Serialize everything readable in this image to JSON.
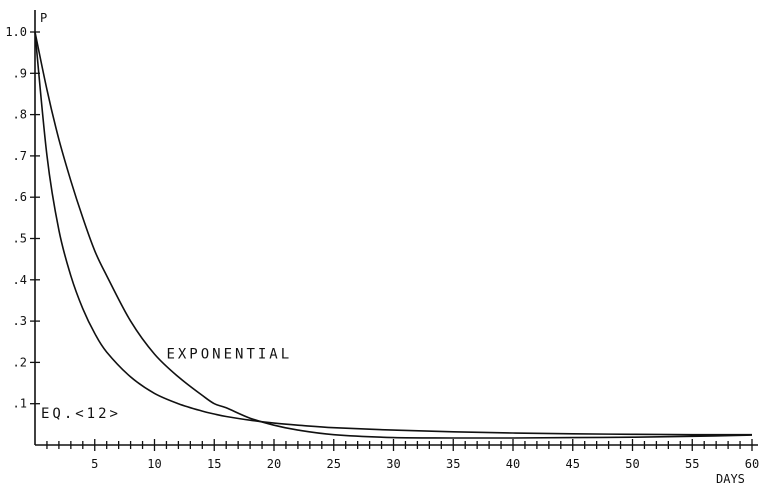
{
  "chart_data": {
    "type": "line",
    "xlabel": "DAYS",
    "ylabel": "P",
    "xlim": [
      0,
      60
    ],
    "ylim": [
      0,
      1.0
    ],
    "x_ticks": [
      "5",
      "10",
      "15",
      "20",
      "25",
      "30",
      "35",
      "40",
      "45",
      "50",
      "55",
      "60"
    ],
    "y_ticks": [
      ".1",
      ".2",
      ".3",
      ".4",
      ".5",
      ".6",
      ".7",
      ".8",
      ".9",
      "1.0"
    ],
    "grid": false,
    "series": [
      {
        "name": "EXPONENTIAL",
        "x": [
          0,
          1,
          2,
          3,
          4,
          5,
          6,
          8,
          10,
          12,
          14,
          15,
          16,
          18,
          20,
          22,
          25,
          30,
          35,
          40,
          45,
          50,
          55,
          60
        ],
        "y": [
          1.0,
          0.86,
          0.74,
          0.64,
          0.55,
          0.47,
          0.41,
          0.3,
          0.22,
          0.165,
          0.12,
          0.1,
          0.09,
          0.065,
          0.048,
          0.036,
          0.025,
          0.018,
          0.017,
          0.017,
          0.018,
          0.019,
          0.021,
          0.024
        ]
      },
      {
        "name": "EQ.<12>",
        "x": [
          0,
          1,
          2,
          3,
          4,
          5,
          6,
          8,
          10,
          12,
          14,
          15,
          16,
          18,
          20,
          22,
          25,
          30,
          35,
          40,
          45,
          50,
          55,
          60
        ],
        "y": [
          1.0,
          0.7,
          0.52,
          0.41,
          0.33,
          0.27,
          0.225,
          0.165,
          0.125,
          0.1,
          0.082,
          0.075,
          0.069,
          0.06,
          0.053,
          0.048,
          0.042,
          0.036,
          0.032,
          0.029,
          0.027,
          0.026,
          0.025,
          0.025
        ]
      }
    ],
    "annotations": [
      {
        "text": "EXPONENTIAL",
        "x": 11,
        "y": 0.21
      },
      {
        "text": "EQ.<12>",
        "x": 0.5,
        "y": 0.065
      }
    ]
  }
}
